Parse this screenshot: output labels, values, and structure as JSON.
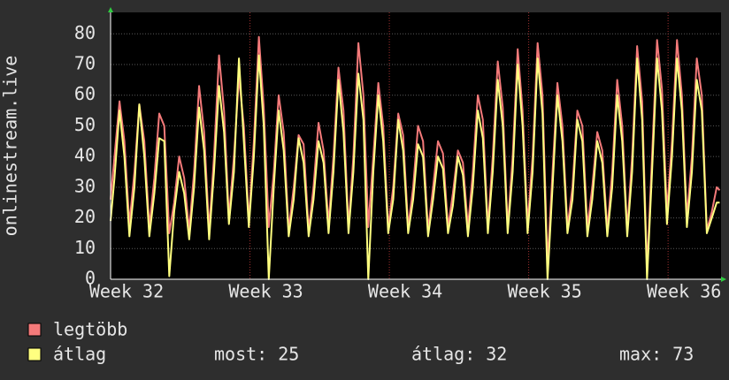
{
  "chart_data": {
    "type": "line",
    "y_label": "onlinestream.live",
    "x": [
      32.0,
      32.028,
      32.064,
      32.099,
      32.135,
      32.171,
      32.206,
      32.242,
      32.278,
      32.314,
      32.349,
      32.385,
      32.421,
      32.456,
      32.492,
      32.528,
      32.564,
      32.599,
      32.635,
      32.671,
      32.707,
      32.742,
      32.778,
      32.814,
      32.849,
      32.885,
      32.921,
      32.956,
      32.992,
      33.028,
      33.064,
      33.099,
      33.135,
      33.171,
      33.206,
      33.242,
      33.278,
      33.314,
      33.349,
      33.385,
      33.421,
      33.456,
      33.492,
      33.528,
      33.564,
      33.599,
      33.635,
      33.671,
      33.707,
      33.742,
      33.778,
      33.814,
      33.849,
      33.885,
      33.921,
      33.956,
      33.992,
      34.028,
      34.064,
      34.099,
      34.135,
      34.171,
      34.206,
      34.242,
      34.278,
      34.314,
      34.349,
      34.385,
      34.421,
      34.456,
      34.492,
      34.528,
      34.564,
      34.599,
      34.635,
      34.671,
      34.707,
      34.742,
      34.778,
      34.814,
      34.849,
      34.885,
      34.921,
      34.956,
      34.992,
      35.028,
      35.064,
      35.099,
      35.135,
      35.171,
      35.206,
      35.242,
      35.278,
      35.314,
      35.349,
      35.385,
      35.421,
      35.456,
      35.492,
      35.528,
      35.564,
      35.599,
      35.635,
      35.671,
      35.707,
      35.742,
      35.778,
      35.814,
      35.849,
      35.885,
      35.921,
      35.956,
      35.992,
      36.028,
      36.064,
      36.099,
      36.135,
      36.171,
      36.206,
      36.242,
      36.278,
      36.314,
      36.349,
      36.37
    ],
    "series": [
      {
        "name": "legtöbb",
        "color": "#f47a7a",
        "values": [
          26,
          40,
          58,
          45,
          18,
          35,
          57,
          45,
          17,
          33,
          54,
          50,
          15,
          25,
          40,
          33,
          16,
          35,
          63,
          48,
          16,
          40,
          73,
          55,
          20,
          40,
          66,
          50,
          19,
          45,
          79,
          56,
          17,
          35,
          60,
          48,
          16,
          30,
          47,
          44,
          16,
          30,
          51,
          42,
          18,
          40,
          69,
          55,
          17,
          40,
          77,
          60,
          17,
          40,
          64,
          50,
          17,
          30,
          54,
          47,
          17,
          30,
          50,
          45,
          16,
          30,
          45,
          41,
          17,
          28,
          42,
          38,
          17,
          35,
          60,
          52,
          17,
          40,
          71,
          56,
          17,
          40,
          75,
          55,
          18,
          40,
          77,
          60,
          5,
          35,
          64,
          50,
          17,
          30,
          55,
          50,
          17,
          30,
          48,
          42,
          16,
          35,
          65,
          50,
          16,
          40,
          76,
          58,
          3,
          40,
          78,
          62,
          22,
          45,
          78,
          60,
          20,
          40,
          72,
          60,
          16,
          22,
          30,
          29
        ]
      },
      {
        "name": "átlag",
        "color": "#ffff80",
        "values": [
          19,
          33,
          55,
          40,
          14,
          30,
          57,
          40,
          14,
          28,
          46,
          45,
          1,
          22,
          35,
          28,
          13,
          30,
          56,
          42,
          13,
          35,
          63,
          48,
          18,
          35,
          72,
          45,
          17,
          40,
          73,
          50,
          0,
          30,
          55,
          42,
          14,
          26,
          46,
          38,
          14,
          26,
          45,
          38,
          15,
          35,
          65,
          48,
          15,
          35,
          67,
          52,
          0,
          35,
          60,
          45,
          15,
          26,
          52,
          42,
          15,
          26,
          44,
          40,
          14,
          26,
          40,
          36,
          15,
          24,
          40,
          34,
          14,
          30,
          55,
          46,
          15,
          35,
          65,
          50,
          15,
          35,
          70,
          50,
          15,
          35,
          72,
          54,
          0,
          30,
          60,
          45,
          15,
          26,
          52,
          45,
          14,
          26,
          45,
          38,
          14,
          30,
          60,
          45,
          14,
          35,
          72,
          52,
          0,
          35,
          72,
          55,
          18,
          40,
          72,
          55,
          17,
          35,
          65,
          55,
          15,
          20,
          25,
          25
        ],
        "stats": [
          {
            "label": "most:",
            "value": 25
          },
          {
            "label": "átlag:",
            "value": 32
          },
          {
            "label": "max:",
            "value": 73
          }
        ]
      }
    ],
    "xlim": [
      32,
      36.38
    ],
    "xticks": [
      {
        "value": 32,
        "label": "Week 32"
      },
      {
        "value": 33,
        "label": "Week 33"
      },
      {
        "value": 34,
        "label": "Week 34"
      },
      {
        "value": 35,
        "label": "Week 35"
      },
      {
        "value": 36,
        "label": "Week 36"
      }
    ],
    "ylim": [
      0,
      87
    ],
    "yticks": [
      0,
      10,
      20,
      30,
      40,
      50,
      60,
      70,
      80
    ],
    "grid": true
  }
}
